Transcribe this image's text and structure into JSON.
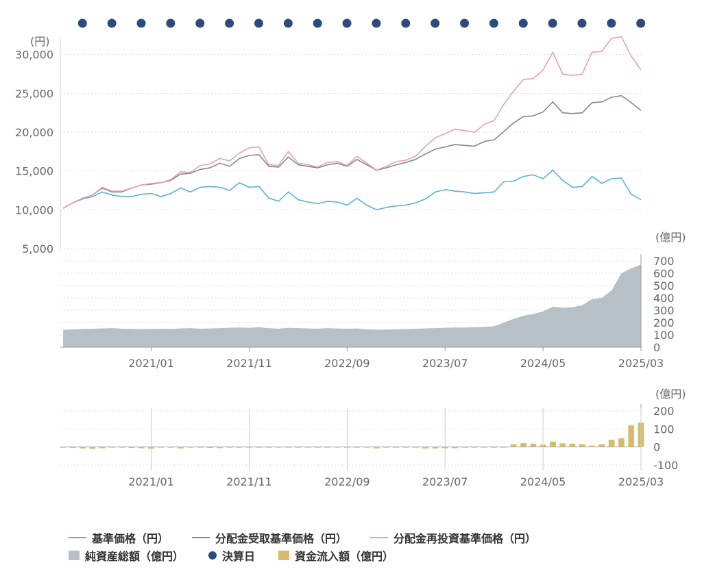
{
  "chart_data": [
    {
      "type": "line",
      "title": "",
      "unit_label": "(円)",
      "ylim": [
        5000,
        32000
      ],
      "yticks": [
        "30,000",
        "25,000",
        "20,000",
        "15,000",
        "10,000",
        "5,000"
      ],
      "ytick_values": [
        30000,
        25000,
        20000,
        15000,
        10000,
        5000
      ],
      "x_start": "2020-03",
      "x_end": "2025-03",
      "settlement_dates": [
        "2020-04",
        "2020-07",
        "2020-10",
        "2021-01",
        "2021-04",
        "2021-07",
        "2021-10",
        "2022-01",
        "2022-04",
        "2022-07",
        "2022-10",
        "2023-01",
        "2023-04",
        "2023-07",
        "2023-10",
        "2024-01",
        "2024-04",
        "2024-07",
        "2024-10",
        "2025-01"
      ],
      "series": [
        {
          "name": "基準価格（円）",
          "color": "#5aafdc",
          "values": [
            10200,
            10900,
            11400,
            11700,
            12300,
            11900,
            11700,
            11700,
            12000,
            12100,
            11700,
            12100,
            12800,
            12300,
            12900,
            13000,
            12900,
            12500,
            13500,
            12900,
            13000,
            11500,
            11100,
            12300,
            11300,
            11000,
            10800,
            11100,
            11000,
            10600,
            11500,
            10600,
            10000,
            10300,
            10500,
            10600,
            10900,
            11400,
            12300,
            12600,
            12400,
            12300,
            12100,
            12200,
            12300,
            13600,
            13700,
            14300,
            14500,
            14000,
            15100,
            13800,
            12900,
            13000,
            14300,
            13400,
            14000,
            14100,
            12000,
            11300
          ]
        },
        {
          "name": "分配金受取基準価格（円）",
          "color": "#7f8c86",
          "values": [
            10200,
            10900,
            11500,
            11900,
            12800,
            12300,
            12300,
            12800,
            13200,
            13300,
            13500,
            13800,
            14600,
            14700,
            15200,
            15400,
            16000,
            15600,
            16600,
            17000,
            17100,
            15600,
            15500,
            16800,
            15800,
            15600,
            15400,
            15800,
            16000,
            15600,
            16500,
            15800,
            15100,
            15400,
            15800,
            16100,
            16500,
            17200,
            17800,
            18100,
            18400,
            18300,
            18200,
            18800,
            19000,
            20100,
            21200,
            22000,
            22100,
            22600,
            23900,
            22500,
            22400,
            22500,
            23800,
            23900,
            24500,
            24700,
            23800,
            22800
          ]
        },
        {
          "name": "分配金再投資基準価格（円）",
          "color": "#e8a0ad",
          "values": [
            10200,
            10900,
            11500,
            11900,
            12900,
            12400,
            12400,
            12800,
            13200,
            13400,
            13500,
            13900,
            14900,
            14800,
            15700,
            15900,
            16600,
            16300,
            17300,
            18000,
            18100,
            15800,
            15700,
            17500,
            16000,
            15800,
            15500,
            16100,
            16200,
            15700,
            16900,
            16000,
            15100,
            15600,
            16200,
            16400,
            16900,
            18200,
            19300,
            19800,
            20400,
            20200,
            20000,
            21000,
            21500,
            23600,
            25300,
            26800,
            26900,
            28000,
            30300,
            27500,
            27300,
            27500,
            30300,
            30400,
            32100,
            32300,
            29800,
            28000
          ]
        }
      ]
    },
    {
      "type": "area",
      "name": "純資産総額（億円）",
      "unit_label": "(億円)",
      "color": "#b6c0c6",
      "ylim": [
        0,
        700
      ],
      "yticks": [
        "700",
        "600",
        "500",
        "400",
        "300",
        "200",
        "100",
        "0"
      ],
      "ytick_values": [
        700,
        600,
        500,
        400,
        300,
        200,
        100,
        0
      ],
      "xticks": [
        "2021/01",
        "2021/11",
        "2022/09",
        "2023/07",
        "2024/05",
        "2025/03"
      ],
      "xtick_months": [
        10,
        20,
        30,
        40,
        50,
        60
      ],
      "values": [
        140,
        145,
        148,
        150,
        152,
        155,
        150,
        148,
        147,
        148,
        150,
        148,
        152,
        155,
        150,
        152,
        155,
        158,
        160,
        158,
        162,
        155,
        150,
        158,
        155,
        152,
        150,
        155,
        152,
        150,
        152,
        145,
        142,
        143,
        145,
        147,
        150,
        152,
        155,
        158,
        160,
        160,
        162,
        165,
        170,
        200,
        230,
        255,
        270,
        290,
        330,
        320,
        325,
        340,
        390,
        400,
        460,
        600,
        640,
        670
      ]
    },
    {
      "type": "bar",
      "name": "資金流入額（億円）",
      "unit_label": "(億円)",
      "color": "#d4bc6a",
      "ylim": [
        -100,
        200
      ],
      "yticks": [
        "200",
        "100",
        "0",
        "-100"
      ],
      "ytick_values": [
        200,
        100,
        0,
        -100
      ],
      "xticks": [
        "2021/01",
        "2021/11",
        "2022/09",
        "2023/07",
        "2024/05",
        "2025/03"
      ],
      "xtick_months": [
        10,
        20,
        30,
        40,
        50,
        60
      ],
      "values": [
        -2,
        -5,
        -8,
        -10,
        -7,
        -2,
        -3,
        -5,
        -7,
        -9,
        -2,
        -2,
        -8,
        -2,
        -3,
        -5,
        -6,
        -3,
        -2,
        -2,
        -3,
        -2,
        -1,
        -1,
        -2,
        -2,
        -1,
        -1,
        -1,
        -1,
        -1,
        -2,
        -8,
        -3,
        -2,
        -2,
        -3,
        -8,
        -8,
        -7,
        -6,
        -3,
        -2,
        -1,
        -2,
        -2,
        15,
        22,
        18,
        12,
        30,
        20,
        18,
        15,
        8,
        15,
        40,
        48,
        120,
        135
      ]
    }
  ],
  "legend": {
    "items": [
      {
        "label": "基準価格（円）",
        "kind": "line",
        "color": "#5aafdc"
      },
      {
        "label": "分配金受取基準価格（円）",
        "kind": "line",
        "color": "#7f8c86"
      },
      {
        "label": "分配金再投資基準価格（円）",
        "kind": "line",
        "color": "#e8a0ad"
      },
      {
        "label": "純資産総額（億円）",
        "kind": "area",
        "color": "#b6c0c6"
      },
      {
        "label": "決算日",
        "kind": "dot",
        "color": "#2c4a7c"
      },
      {
        "label": "資金流入額（億円）",
        "kind": "bar",
        "color": "#d4bc6a"
      }
    ]
  }
}
